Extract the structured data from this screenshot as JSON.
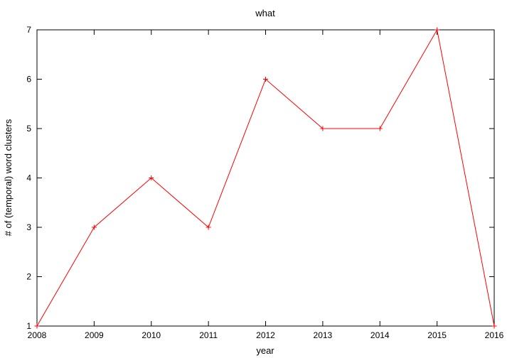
{
  "chart_data": {
    "type": "line",
    "title": "what",
    "xlabel": "year",
    "ylabel": "# of (temporal) word clusters",
    "x": [
      2008,
      2009,
      2010,
      2011,
      2012,
      2013,
      2014,
      2015,
      2016
    ],
    "series": [
      {
        "values": [
          1,
          3,
          4,
          3,
          6,
          5,
          5,
          7,
          1
        ],
        "color": "#ff0000",
        "marker": "plus"
      }
    ],
    "xlim": [
      2008,
      2016
    ],
    "ylim": [
      1,
      7
    ],
    "xticks": [
      "2008",
      "2009",
      "2010",
      "2011",
      "2012",
      "2013",
      "2014",
      "2015",
      "2016"
    ],
    "yticks": [
      "1",
      "2",
      "3",
      "4",
      "5",
      "6",
      "7"
    ],
    "grid": false,
    "legend": "none"
  }
}
